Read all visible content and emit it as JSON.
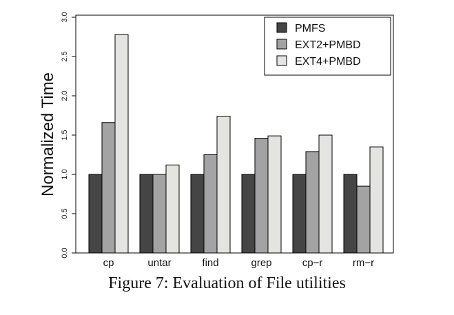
{
  "caption": "Figure 7: Evaluation of File utilities",
  "chart_data": {
    "type": "bar",
    "title": "",
    "xlabel": "",
    "ylabel": "Normalized Time",
    "ylim": [
      0,
      3.0
    ],
    "yticks": [
      "0.0",
      "0.5",
      "1.0",
      "1.5",
      "2.0",
      "2.5",
      "3.0"
    ],
    "categories": [
      "cp",
      "untar",
      "find",
      "grep",
      "cp−r",
      "rm−r"
    ],
    "series": [
      {
        "name": "PMFS",
        "color": "#454545",
        "values": [
          1.0,
          1.0,
          1.0,
          1.0,
          1.0,
          1.0
        ]
      },
      {
        "name": "EXT2+PMBD",
        "color": "#a3a3a3",
        "values": [
          1.66,
          1.0,
          1.25,
          1.46,
          1.29,
          0.85
        ]
      },
      {
        "name": "EXT4+PMBD",
        "color": "#e4e4e0",
        "values": [
          2.78,
          1.12,
          1.74,
          1.49,
          1.5,
          1.35
        ]
      }
    ],
    "grid": false,
    "legend_position": "top-right"
  }
}
